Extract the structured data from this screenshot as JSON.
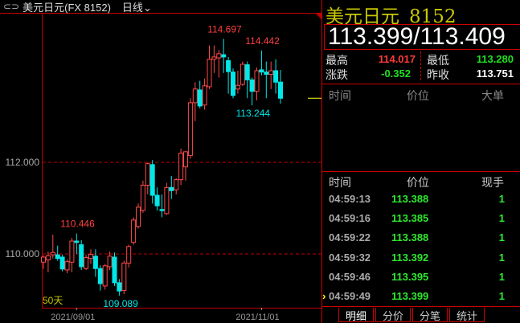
{
  "header": {
    "link_icon": "link-icon",
    "symbol": "美元日元(FX 8152)",
    "period": "日线",
    "period_icon": "chevron-down-icon"
  },
  "quote": {
    "name": "美元日元",
    "code": "8152",
    "price": "113.399/113.409",
    "high_label": "最高",
    "high": "114.017",
    "low_label": "最低",
    "low": "113.280",
    "change_label": "涨跌",
    "change": "-0.352",
    "prev_close_label": "昨收",
    "prev_close": "113.751",
    "colors": {
      "up": "#ff3b3b",
      "down": "#20e020"
    }
  },
  "big_orders": {
    "headers": [
      "时间",
      "价位",
      "大单"
    ]
  },
  "ticks": {
    "headers": [
      "时间",
      "价位",
      "现手"
    ],
    "rows": [
      {
        "time": "04:59:13",
        "price": "113.388",
        "vol": "1"
      },
      {
        "time": "04:59:16",
        "price": "113.385",
        "vol": "1"
      },
      {
        "time": "04:59:22",
        "price": "113.388",
        "vol": "1"
      },
      {
        "time": "04:59:32",
        "price": "113.392",
        "vol": "1"
      },
      {
        "time": "04:59:46",
        "price": "113.395",
        "vol": "1"
      },
      {
        "time": "04:59:49",
        "price": "113.399",
        "vol": "1"
      }
    ]
  },
  "tabs": [
    "明细",
    "分价",
    "分笔",
    "统计"
  ],
  "chart_data": {
    "type": "candlestick",
    "ylim": [
      108.8,
      115.2
    ],
    "yticks": [
      "112.000",
      "110.000"
    ],
    "ytick_values": [
      112,
      110
    ],
    "xtick_labels": [
      "2021/09/01",
      "2021/11/01"
    ],
    "xtick_index": [
      7,
      46
    ],
    "period_label": "50天",
    "annotations": [
      {
        "text": "114.697",
        "index": 38,
        "value": 114.697,
        "color": "#ff4040"
      },
      {
        "text": "114.442",
        "index": 46,
        "value": 114.442,
        "color": "#ff4040"
      },
      {
        "text": "110.446",
        "index": 7,
        "value": 110.446,
        "color": "#ff4040"
      },
      {
        "text": "113.244",
        "index": 44,
        "value": 113.244,
        "color": "#00e8e8"
      },
      {
        "text": "109.089",
        "index": 16,
        "value": 109.089,
        "color": "#00e8e8"
      }
    ],
    "colors": {
      "up": "#ff4a4a",
      "down": "#00e8e8",
      "grid": "#c00000"
    },
    "ohlc": [
      [
        109.82,
        109.97,
        109.67,
        109.93
      ],
      [
        109.87,
        110.05,
        109.6,
        109.96
      ],
      [
        109.98,
        110.42,
        109.9,
        110.03
      ],
      [
        109.98,
        110.18,
        109.85,
        109.9
      ],
      [
        109.93,
        109.98,
        109.62,
        109.67
      ],
      [
        109.65,
        109.88,
        109.58,
        109.83
      ],
      [
        109.82,
        110.35,
        109.6,
        110.28
      ],
      [
        110.28,
        110.446,
        110.0,
        110.25
      ],
      [
        110.2,
        110.3,
        109.65,
        109.72
      ],
      [
        109.68,
        109.98,
        109.65,
        109.92
      ],
      [
        109.9,
        110.1,
        109.78,
        109.99
      ],
      [
        109.95,
        110.1,
        109.5,
        109.68
      ],
      [
        109.68,
        109.75,
        109.2,
        109.35
      ],
      [
        109.3,
        109.78,
        109.22,
        109.74
      ],
      [
        109.72,
        110.05,
        109.65,
        109.95
      ],
      [
        109.93,
        110.03,
        109.3,
        109.37
      ],
      [
        109.37,
        109.45,
        109.089,
        109.19
      ],
      [
        109.2,
        109.85,
        109.12,
        109.8
      ],
      [
        109.8,
        110.2,
        109.7,
        110.16
      ],
      [
        110.25,
        110.8,
        110.2,
        110.74
      ],
      [
        110.6,
        111.1,
        110.55,
        111.02
      ],
      [
        110.95,
        111.6,
        110.9,
        111.5
      ],
      [
        111.5,
        112.0,
        111.3,
        111.97
      ],
      [
        111.95,
        112.05,
        111.1,
        111.28
      ],
      [
        111.28,
        111.45,
        110.95,
        111.05
      ],
      [
        110.97,
        111.3,
        110.8,
        110.95
      ],
      [
        110.88,
        111.55,
        110.85,
        111.45
      ],
      [
        111.45,
        111.7,
        111.2,
        111.38
      ],
      [
        111.4,
        111.65,
        111.3,
        111.62
      ],
      [
        111.62,
        112.3,
        111.5,
        112.2
      ],
      [
        111.9,
        112.25,
        111.6,
        112.23
      ],
      [
        112.15,
        113.4,
        112.08,
        113.3
      ],
      [
        113.3,
        113.75,
        112.9,
        113.6
      ],
      [
        113.58,
        113.78,
        113.18,
        113.23
      ],
      [
        113.25,
        113.83,
        113.15,
        113.67
      ],
      [
        113.65,
        114.55,
        113.6,
        114.25
      ],
      [
        114.25,
        114.55,
        113.95,
        114.3
      ],
      [
        114.28,
        114.45,
        113.85,
        114.37
      ],
      [
        114.35,
        114.697,
        113.95,
        114.3
      ],
      [
        114.22,
        114.3,
        113.5,
        113.98
      ],
      [
        113.97,
        114.05,
        113.4,
        113.46
      ],
      [
        113.6,
        114.0,
        113.5,
        113.68
      ],
      [
        113.7,
        114.2,
        113.67,
        114.14
      ],
      [
        114.13,
        114.2,
        113.4,
        113.8
      ],
      [
        113.8,
        113.85,
        113.244,
        113.55
      ],
      [
        113.55,
        114.07,
        113.35,
        114.0
      ],
      [
        114.02,
        114.442,
        113.9,
        113.97
      ],
      [
        113.97,
        114.2,
        113.4,
        113.92
      ],
      [
        113.92,
        114.2,
        113.6,
        114.0
      ],
      [
        114.0,
        114.25,
        113.5,
        113.75
      ],
      [
        113.751,
        114.017,
        113.28,
        113.399
      ]
    ]
  }
}
